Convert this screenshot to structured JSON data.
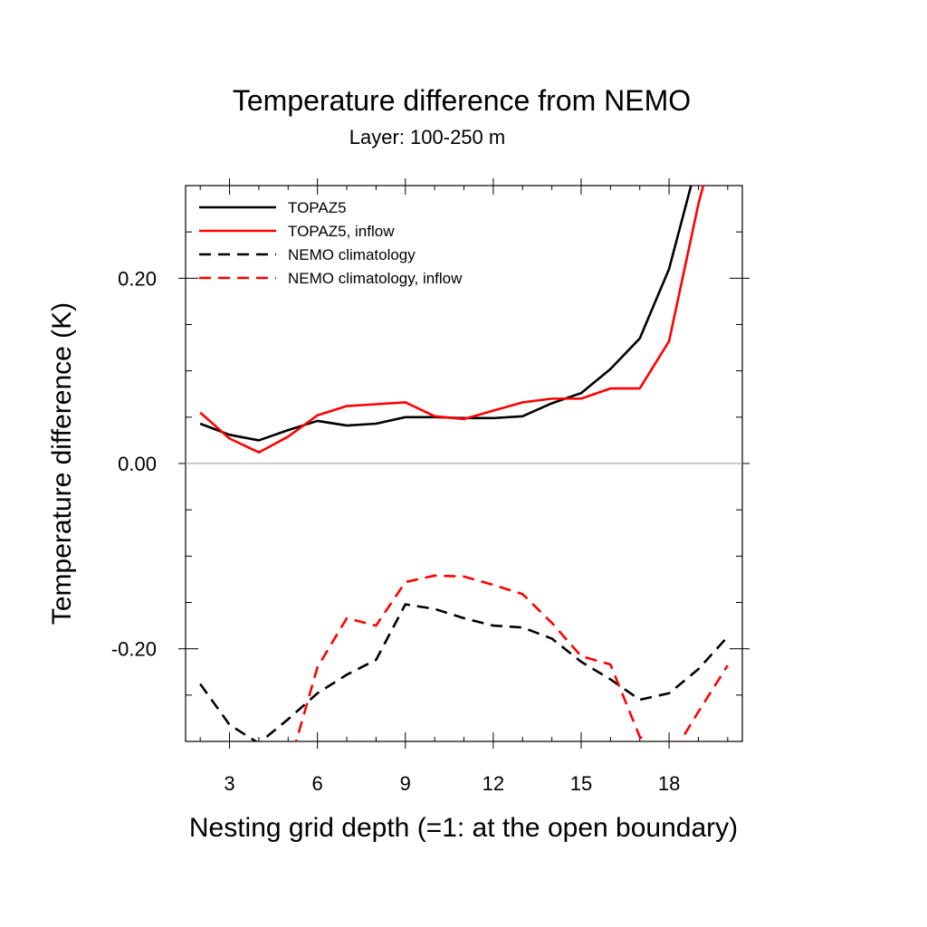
{
  "chart_data": {
    "type": "line",
    "title": "Temperature difference from NEMO",
    "subtitle": "Layer: 100-250 m",
    "xlabel": "Nesting grid depth (=1: at the open boundary)",
    "ylabel": "Temperature difference (K)",
    "xlim": [
      1.5,
      20.5
    ],
    "ylim": [
      -0.3,
      0.3
    ],
    "x_ticks": [
      3,
      6,
      9,
      12,
      15,
      18
    ],
    "x_tick_labels": [
      "3",
      "6",
      "9",
      "12",
      "15",
      "18"
    ],
    "y_ticks": [
      -0.2,
      0.0,
      0.2
    ],
    "y_tick_labels": [
      "-0.20",
      "0.00",
      "0.20"
    ],
    "reference_line": 0.0,
    "legend_position": "top-left",
    "x": [
      2,
      3,
      4,
      5,
      6,
      7,
      8,
      9,
      10,
      11,
      12,
      13,
      14,
      15,
      16,
      17,
      18,
      19,
      20
    ],
    "series": [
      {
        "name": "TOPAZ5",
        "color": "#000000",
        "dash": "solid",
        "values": [
          0.043,
          0.031,
          0.025,
          0.036,
          0.046,
          0.041,
          0.043,
          0.05,
          0.05,
          0.049,
          0.049,
          0.051,
          0.065,
          0.076,
          0.102,
          0.135,
          0.21,
          0.33,
          null
        ]
      },
      {
        "name": "TOPAZ5, inflow",
        "color": "#ff0000",
        "dash": "solid",
        "values": [
          0.055,
          0.027,
          0.012,
          0.029,
          0.052,
          0.062,
          0.064,
          0.066,
          0.051,
          0.048,
          0.057,
          0.066,
          0.07,
          0.07,
          0.081,
          0.081,
          0.132,
          0.28,
          0.4
        ]
      },
      {
        "name": "NEMO climatology",
        "color": "#000000",
        "dash": "dashed",
        "values": [
          -0.238,
          -0.282,
          -0.302,
          -0.276,
          -0.248,
          -0.228,
          -0.212,
          -0.152,
          -0.157,
          -0.167,
          -0.175,
          -0.177,
          -0.189,
          -0.214,
          -0.233,
          -0.255,
          -0.248,
          -0.222,
          -0.187
        ]
      },
      {
        "name": "NEMO climatology, inflow",
        "color": "#ff0000",
        "dash": "dashed",
        "values": [
          null,
          null,
          null,
          -0.33,
          -0.22,
          -0.167,
          -0.175,
          -0.128,
          -0.121,
          -0.122,
          -0.131,
          -0.141,
          -0.172,
          -0.208,
          -0.217,
          -0.295,
          -0.32,
          -0.268,
          -0.218
        ]
      }
    ]
  }
}
